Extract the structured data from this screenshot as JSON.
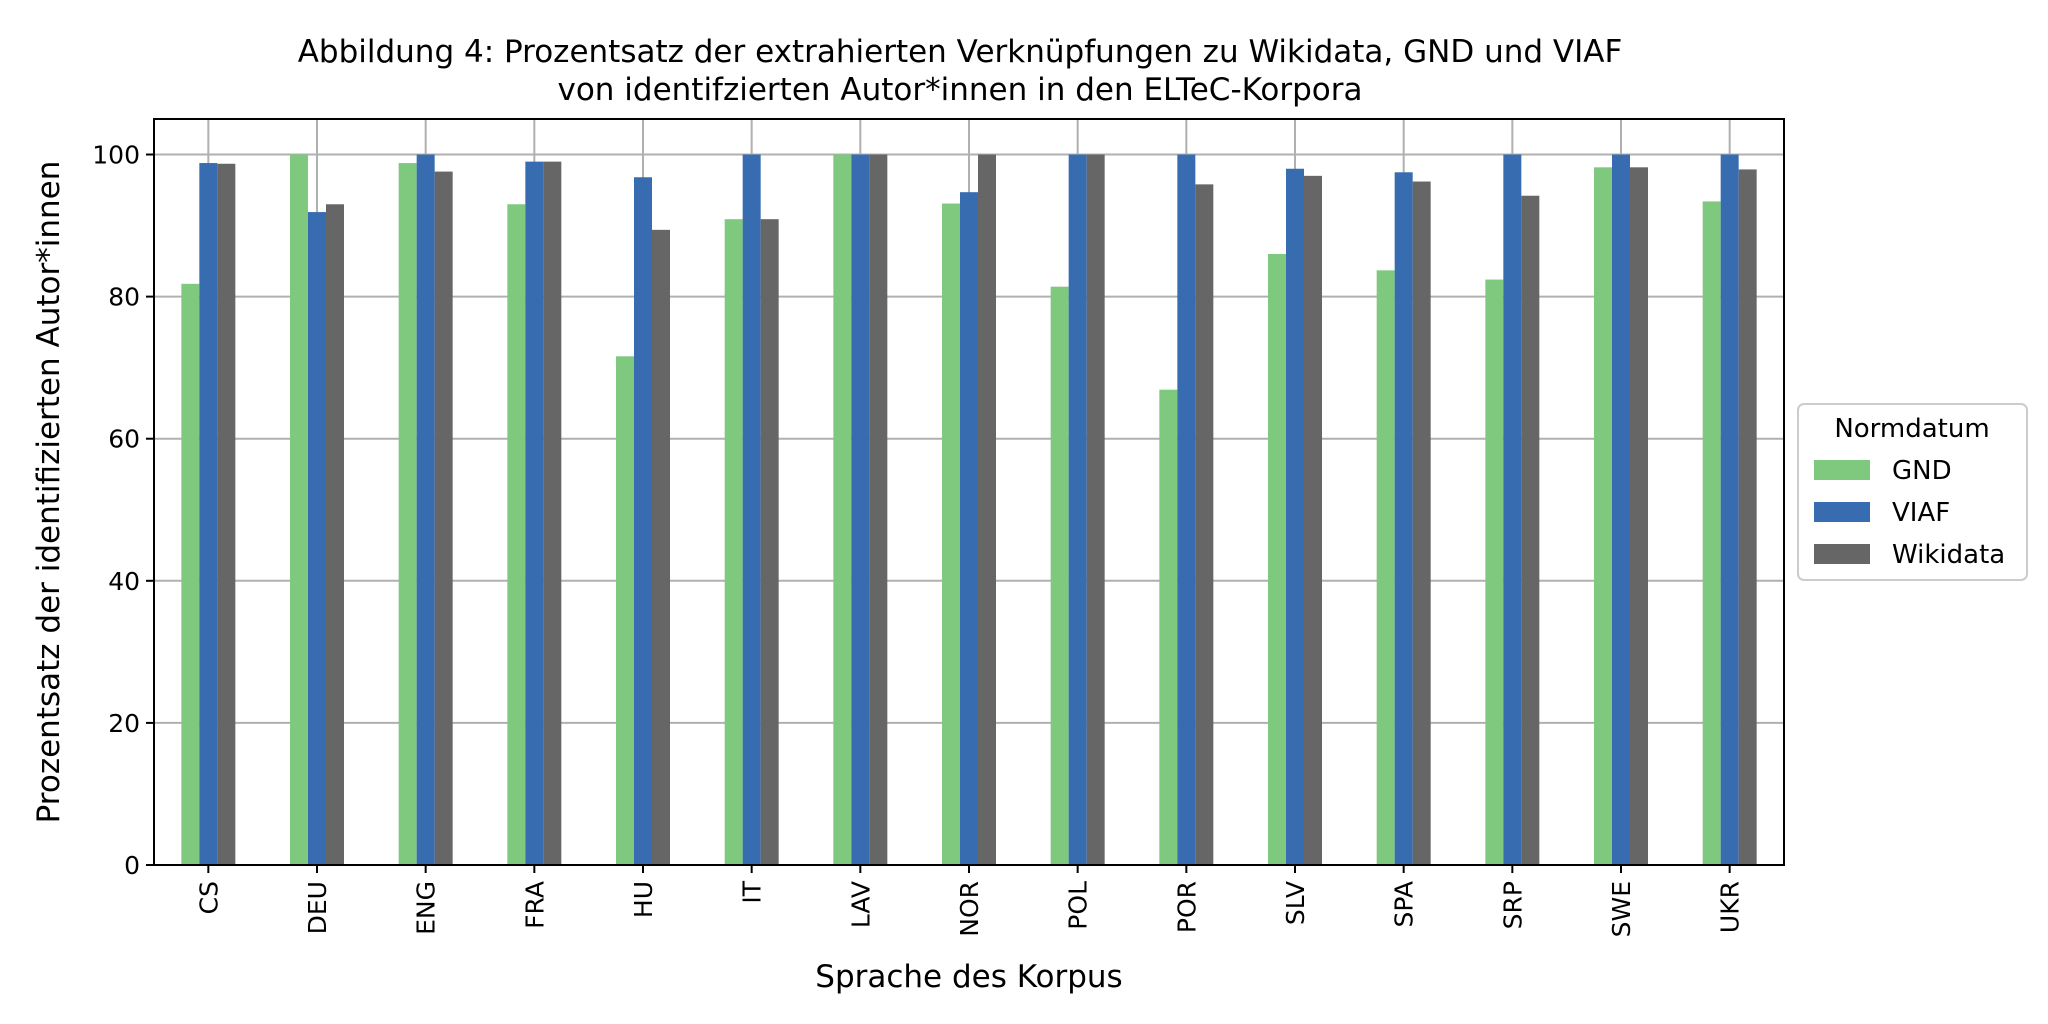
{
  "chart_data": {
    "type": "bar",
    "title": "Abbildung 4: Prozentsatz der extrahierten Verknüpfungen zu Wikidata, GND und VIAF",
    "subtitle": "von identifzierten Autor*innen in den ELTeC-Korpora",
    "xlabel": "Sprache des Korpus",
    "ylabel": "Prozentsatz der identifizierten Autor*innen",
    "ylim": [
      0,
      105
    ],
    "yticks": [
      0,
      20,
      40,
      60,
      80,
      100
    ],
    "grid": true,
    "legend": {
      "title": "Normdatum",
      "placement": "right"
    },
    "categories": [
      "CS",
      "DEU",
      "ENG",
      "FRA",
      "HU",
      "IT",
      "LAV",
      "NOR",
      "POL",
      "POR",
      "SLV",
      "SPA",
      "SRP",
      "SWE",
      "UKR"
    ],
    "series": [
      {
        "name": "GND",
        "color": "#7fc97f",
        "values": [
          81.8,
          100,
          98.8,
          93.0,
          71.6,
          90.9,
          100,
          93.1,
          81.4,
          66.9,
          86.0,
          83.7,
          82.4,
          98.2,
          93.4
        ]
      },
      {
        "name": "VIAF",
        "color": "#386cb0",
        "values": [
          98.8,
          91.9,
          100,
          99.0,
          96.8,
          100,
          100,
          94.7,
          100,
          100,
          98.0,
          97.5,
          100,
          100,
          100
        ]
      },
      {
        "name": "Wikidata",
        "color": "#666666",
        "values": [
          98.7,
          93.0,
          97.6,
          99.0,
          89.4,
          90.9,
          100,
          100,
          100,
          95.8,
          97.0,
          96.2,
          94.2,
          98.2,
          97.9
        ]
      }
    ]
  }
}
